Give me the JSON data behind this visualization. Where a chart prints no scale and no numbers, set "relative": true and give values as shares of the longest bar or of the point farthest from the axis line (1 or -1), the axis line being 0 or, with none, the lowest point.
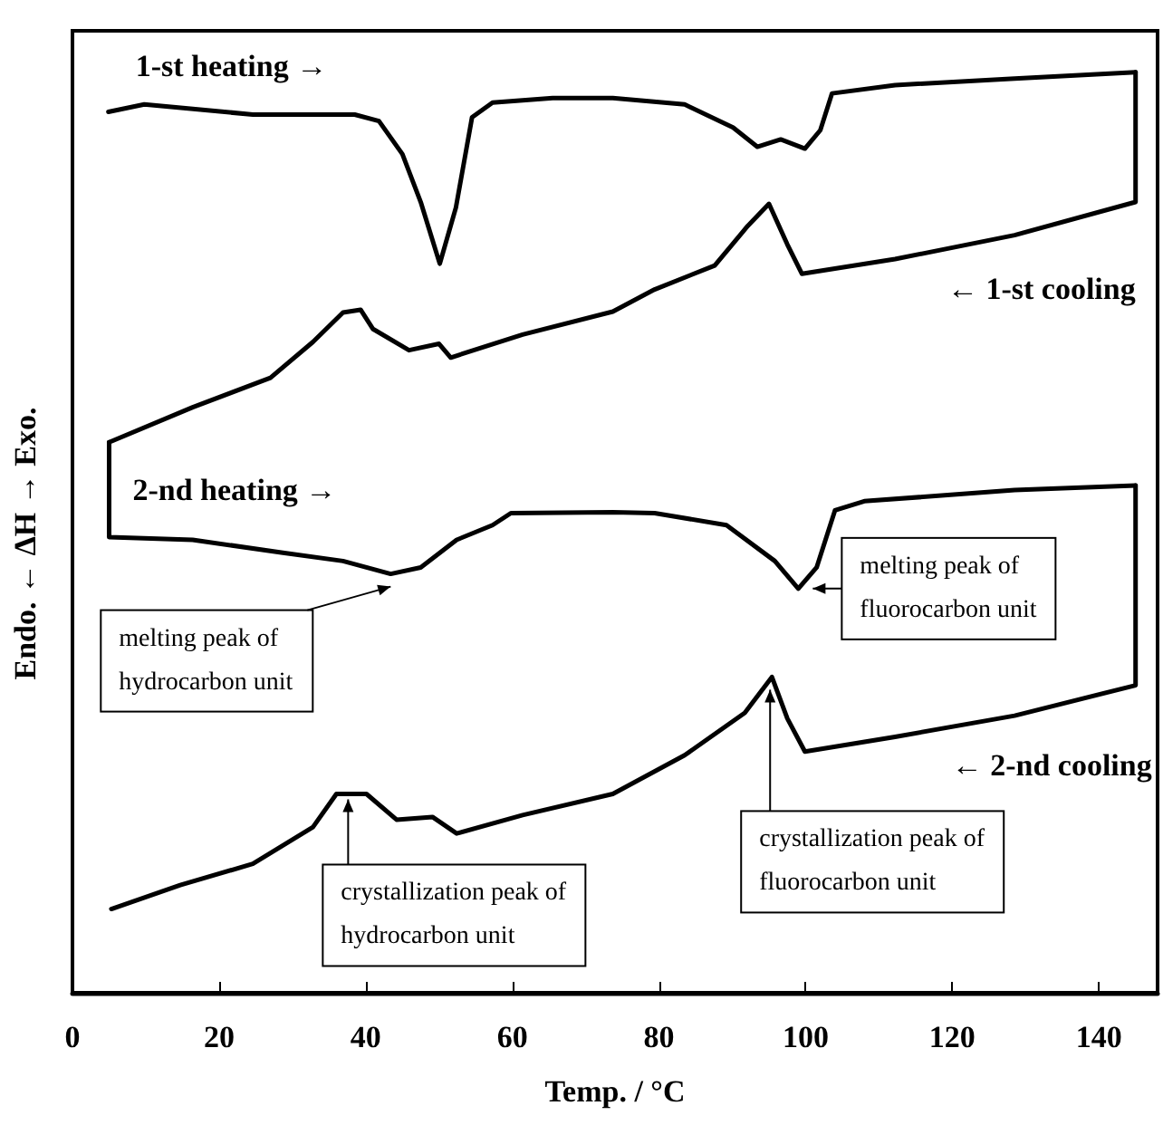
{
  "chart_data": {
    "type": "line",
    "relative": true,
    "xlabel": "Temp. / °C",
    "ylabel": "Endo. ← ΔH → Exo.",
    "xlim": [
      0,
      148
    ],
    "xticks": [
      0,
      20,
      40,
      60,
      80,
      100,
      120,
      140
    ],
    "tick_labels": "x",
    "series": [
      {
        "name": "1-st heating →",
        "color": "#000000",
        "x": [
          4.9,
          9.8,
          24.6,
          38.5,
          41.8,
          45,
          47.5,
          50.1,
          52.3,
          54.5,
          57.3,
          65.5,
          73.7,
          83.5,
          90.1,
          93.4,
          96.6,
          99.9,
          102,
          103.6,
          112.2,
          128.5,
          145
        ],
        "values": [
          0.957,
          0.965,
          0.954,
          0.954,
          0.947,
          0.911,
          0.859,
          0.792,
          0.853,
          0.951,
          0.967,
          0.972,
          0.972,
          0.965,
          0.94,
          0.919,
          0.927,
          0.917,
          0.937,
          0.977,
          0.986,
          0.993,
          1.0
        ]
      },
      {
        "name": "← 1-st cooling",
        "color": "#000000",
        "x": [
          145,
          145,
          128.5,
          112.2,
          99.5,
          97.5,
          95,
          92.1,
          87.6,
          79.4,
          73.7,
          61.4,
          51.6,
          50,
          45.9,
          41,
          39.3,
          36.9,
          32.8,
          27,
          16.4,
          5
        ],
        "values": [
          1.0,
          0.859,
          0.823,
          0.797,
          0.781,
          0.813,
          0.857,
          0.833,
          0.79,
          0.764,
          0.74,
          0.715,
          0.69,
          0.705,
          0.698,
          0.721,
          0.742,
          0.739,
          0.707,
          0.668,
          0.636,
          0.598
        ]
      },
      {
        "name": "2-nd heating →",
        "color": "#000000",
        "x": [
          5,
          5,
          16.4,
          28.7,
          36.9,
          43.4,
          47.5,
          52.4,
          57.3,
          59.8,
          73.7,
          79.4,
          89.2,
          95.8,
          99,
          101.5,
          104,
          108,
          128.5,
          145
        ],
        "values": [
          0.598,
          0.495,
          0.492,
          0.478,
          0.469,
          0.455,
          0.462,
          0.492,
          0.508,
          0.521,
          0.522,
          0.521,
          0.508,
          0.469,
          0.439,
          0.462,
          0.524,
          0.534,
          0.546,
          0.551
        ]
      },
      {
        "name": "← 2-nd cooling",
        "color": "#000000",
        "x": [
          145,
          145,
          128.5,
          112.2,
          99.9,
          97.5,
          95.4,
          91.7,
          83.5,
          73.7,
          61.4,
          52.4,
          49.1,
          44.2,
          40.1,
          36,
          32.8,
          24.6,
          14.7,
          5.3
        ],
        "values": [
          0.551,
          0.334,
          0.301,
          0.278,
          0.262,
          0.298,
          0.343,
          0.304,
          0.258,
          0.216,
          0.193,
          0.173,
          0.191,
          0.188,
          0.216,
          0.216,
          0.18,
          0.14,
          0.117,
          0.091
        ]
      }
    ],
    "annotations": [
      {
        "text": "melting peak of hydrocarbon unit",
        "x": 43.4,
        "y": 0.455
      },
      {
        "text": "melting peak of fluorocarbon unit",
        "x": 99,
        "y": 0.439
      },
      {
        "text": "crystallization peak of hydrocarbon unit",
        "x": 37.6,
        "y": 0.216
      },
      {
        "text": "crystallization peak of fluorocarbon unit",
        "x": 95.4,
        "y": 0.343
      }
    ]
  }
}
